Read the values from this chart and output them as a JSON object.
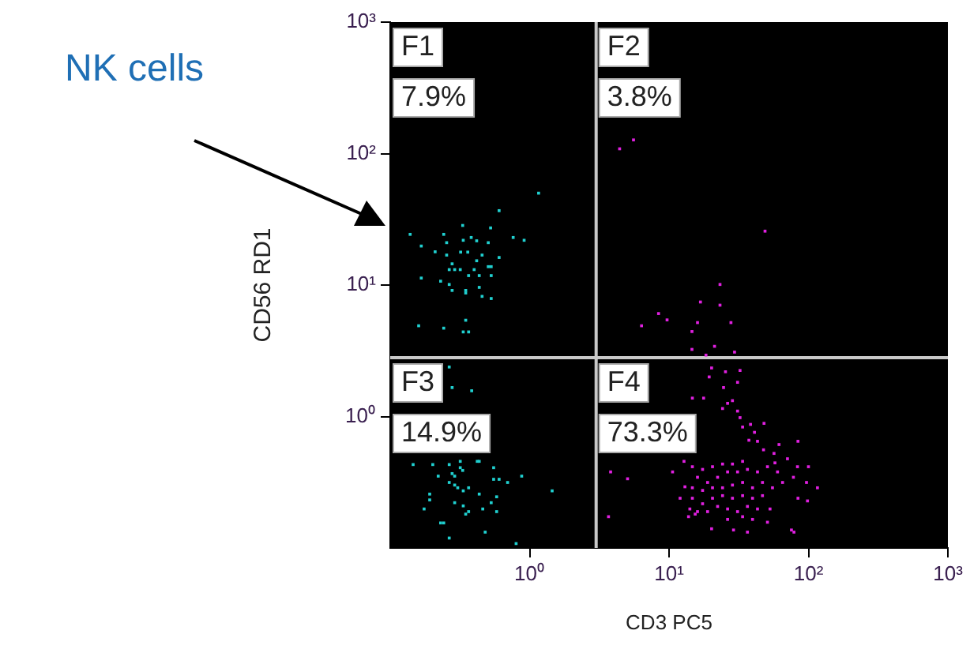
{
  "chart_data": {
    "type": "scatter",
    "xlabel": "CD3 PC5",
    "ylabel": "CD56 RD1",
    "log": "xy",
    "grid": false,
    "legend": false,
    "marker": "square",
    "xlim": [
      0.1,
      1000
    ],
    "ylim": [
      0.1,
      1000
    ],
    "xticks": [
      {
        "value": 1,
        "label": "10⁰"
      },
      {
        "value": 10,
        "label": "10¹"
      },
      {
        "value": 100,
        "label": "10²"
      },
      {
        "value": 1000,
        "label": "10³"
      }
    ],
    "yticks": [
      {
        "value": 1,
        "label": "10⁰"
      },
      {
        "value": 10,
        "label": "10¹"
      },
      {
        "value": 100,
        "label": "10²"
      },
      {
        "value": 1000,
        "label": "10³"
      }
    ],
    "ref_lines": [
      {
        "axis": "x",
        "value": 3,
        "color": "#c8c8c8"
      },
      {
        "axis": "y",
        "value": 2.8,
        "color": "#c8c8c8"
      }
    ],
    "annotations": [
      "F1",
      "7.9%",
      "F2",
      "3.8%",
      "F3",
      "14.9%",
      "F4",
      "73.3%",
      "NK cells"
    ],
    "series": [
      {
        "color": "#20d0d0",
        "x": [
          0.139,
          0.167,
          0.21,
          0.242,
          0.254,
          0.331,
          0.334,
          0.381,
          0.417,
          0.525,
          0.505,
          0.604,
          1.16,
          0.762,
          0.913,
          0.254,
          0.36,
          0.32,
          0.456,
          0.604,
          0.417,
          0.278,
          0.505,
          0.53,
          0.265,
          0.29,
          0.318,
          0.365,
          0.4,
          0.435,
          0.53,
          0.167,
          0.23,
          0.265,
          0.278,
          0.348,
          0.348,
          0.435,
          0.456,
          0.53,
          0.16,
          0.242,
          0.348,
          0.334,
          0.365,
          0.265,
          0.278,
          0.384,
          0.146,
          0.202,
          0.265,
          0.318,
          0.421,
          0.435,
          0.552,
          0.221,
          0.278,
          0.29,
          0.318,
          0.331,
          0.265,
          0.29,
          0.305,
          0.334,
          0.365,
          0.435,
          0.552,
          0.604,
          0.695,
          0.877,
          1.45,
          0.192,
          0.192,
          0.29,
          0.334,
          0.461,
          0.53,
          0.58,
          0.175,
          0.348,
          0.365,
          0.58,
          0.23,
          0.242,
          0.48,
          0.265,
          0.8
        ],
        "values": [
          24.3,
          19.8,
          17.9,
          24.3,
          21.0,
          28.4,
          21.9,
          23.0,
          21.7,
          27.2,
          21.0,
          36.8,
          50.0,
          23.0,
          21.9,
          16.9,
          17.8,
          17.8,
          16.9,
          16.2,
          15.3,
          14.5,
          13.8,
          13.8,
          13.1,
          13.1,
          13.1,
          11.8,
          13.1,
          11.8,
          11.8,
          11.3,
          10.7,
          10.1,
          9.1,
          9.1,
          8.7,
          9.6,
          8.2,
          7.9,
          4.9,
          4.7,
          5.4,
          4.4,
          4.4,
          2.38,
          1.66,
          1.57,
          0.431,
          0.431,
          0.431,
          0.456,
          0.456,
          0.456,
          0.408,
          0.352,
          0.368,
          0.352,
          0.408,
          0.389,
          0.315,
          0.301,
          0.287,
          0.272,
          0.287,
          0.257,
          0.333,
          0.333,
          0.315,
          0.352,
          0.272,
          0.257,
          0.232,
          0.221,
          0.209,
          0.198,
          0.221,
          0.245,
          0.198,
          0.181,
          0.189,
          0.189,
          0.155,
          0.155,
          0.132,
          0.119,
          0.108
        ]
      },
      {
        "color": "#e020e0",
        "x": [
          4.42,
          5.56,
          48.8,
          23.2,
          16.8,
          23.2,
          8.41,
          9.68,
          6.35,
          16.0,
          27.8,
          14.6,
          14.6,
          18.4,
          21.2,
          29.5,
          20.2,
          19.4,
          25.4,
          32.3,
          31.0,
          24.6,
          14.7,
          17.7,
          28.5,
          26.3,
          24.2,
          31.0,
          32.3,
          38.4,
          48.0,
          33.7,
          41.0,
          37.4,
          43.1,
          47.6,
          56.6,
          61.5,
          84.1,
          70.7,
          57.5,
          83.4,
          100,
          78.0,
          116,
          96.8,
          84.1,
          98.4,
          3.81,
          5.04,
          10.6,
          3.68,
          12.8,
          14.7,
          17.4,
          20.5,
          24.2,
          28.5,
          33.7,
          16.0,
          18.9,
          22.3,
          26.3,
          31.0,
          36.5,
          43.1,
          50.8,
          60.0,
          65.2,
          55.2,
          46.8,
          39.7,
          33.7,
          28.5,
          24.2,
          20.5,
          17.4,
          14.7,
          13.0,
          14.7,
          17.4,
          20.5,
          24.2,
          28.5,
          33.7,
          39.7,
          46.8,
          53.0,
          43.1,
          36.5,
          31.0,
          26.3,
          22.3,
          18.9,
          16.0,
          14.1,
          20.2,
          29.0,
          36.5,
          75.5,
          78.7,
          50.8,
          26.3,
          33.7,
          39.7,
          15.4,
          12.0,
          13.8
        ],
        "values": [
          108.7,
          127,
          25.7,
          10.1,
          7.43,
          7.03,
          6.07,
          5.43,
          4.9,
          5.18,
          5.18,
          4.43,
          3.24,
          2.93,
          3.42,
          3.09,
          2.34,
          2.0,
          2.19,
          2.24,
          1.82,
          1.66,
          1.38,
          1.38,
          1.32,
          1.26,
          1.15,
          1.1,
          0.98,
          0.871,
          0.887,
          0.832,
          0.758,
          0.66,
          0.648,
          0.558,
          0.524,
          0.612,
          0.648,
          0.477,
          0.444,
          0.415,
          0.415,
          0.345,
          0.287,
          0.315,
          0.239,
          0.228,
          0.379,
          0.336,
          0.379,
          0.173,
          0.456,
          0.415,
          0.396,
          0.415,
          0.435,
          0.435,
          0.456,
          0.345,
          0.315,
          0.345,
          0.379,
          0.379,
          0.396,
          0.379,
          0.415,
          0.379,
          0.315,
          0.287,
          0.315,
          0.287,
          0.315,
          0.301,
          0.287,
          0.287,
          0.274,
          0.287,
          0.292,
          0.239,
          0.217,
          0.239,
          0.25,
          0.239,
          0.25,
          0.239,
          0.25,
          0.198,
          0.198,
          0.207,
          0.189,
          0.198,
          0.207,
          0.189,
          0.189,
          0.198,
          0.14,
          0.137,
          0.132,
          0.137,
          0.132,
          0.157,
          0.165,
          0.173,
          0.165,
          0.181,
          0.239,
          0.173
        ]
      }
    ]
  }
}
